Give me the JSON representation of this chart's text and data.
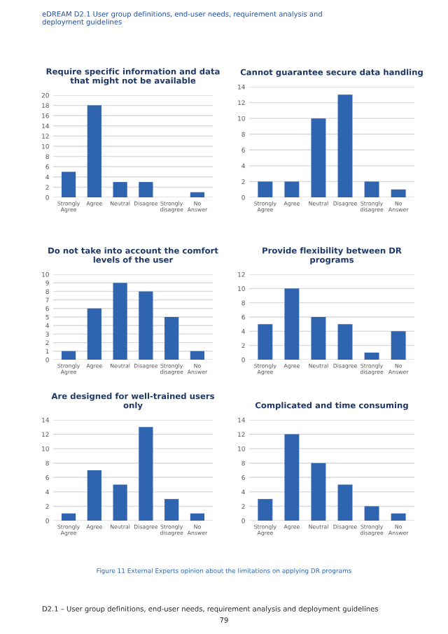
{
  "chart_data": [
    {
      "type": "bar",
      "title": "Require specific information and data\nthat might not be available",
      "categories": [
        "Strongly\nAgree",
        "Agree",
        "Neutral",
        "Disagree",
        "Strongly\ndisagree",
        "No\nAnswer"
      ],
      "values": [
        5,
        18,
        3,
        3,
        0,
        1
      ],
      "color": "#2e64b0",
      "ylim": [
        0,
        20
      ],
      "yticks": [
        0,
        2,
        4,
        6,
        8,
        10,
        12,
        14,
        16,
        18,
        20
      ],
      "grid": "y"
    },
    {
      "type": "bar",
      "title": "Cannot guarantee secure data handling",
      "categories": [
        "Strongly\nAgree",
        "Agree",
        "Neutral",
        "Disagree",
        "Strongly\ndisagree",
        "No\nAnswer"
      ],
      "values": [
        2,
        2,
        10,
        13,
        2,
        1
      ],
      "color": "#2e64b0",
      "ylim": [
        0,
        14
      ],
      "yticks": [
        0,
        2,
        4,
        6,
        8,
        10,
        12,
        14
      ],
      "grid": "y"
    },
    {
      "type": "bar",
      "title": "Do not take into account the comfort\nlevels of the user",
      "categories": [
        "Strongly\nAgree",
        "Agree",
        "Neutral",
        "Disagree",
        "Strongly\ndisagree",
        "No\nAnswer"
      ],
      "values": [
        1,
        6,
        9,
        8,
        5,
        1
      ],
      "color": "#2e64b0",
      "ylim": [
        0,
        10
      ],
      "yticks": [
        0,
        1,
        2,
        3,
        4,
        5,
        6,
        7,
        8,
        9,
        10
      ],
      "grid": "y"
    },
    {
      "type": "bar",
      "title": "Provide flexibility between DR\nprograms",
      "categories": [
        "Strongly\nAgree",
        "Agree",
        "Neutral",
        "Disagree",
        "Strongly\ndisagree",
        "No\nAnswer"
      ],
      "values": [
        5,
        10,
        6,
        5,
        1,
        4
      ],
      "color": "#2e64b0",
      "ylim": [
        0,
        12
      ],
      "yticks": [
        0,
        2,
        4,
        6,
        8,
        10,
        12
      ],
      "grid": "y"
    },
    {
      "type": "bar",
      "title": "Are designed for well-trained users\nonly",
      "categories": [
        "Strongly\nAgree",
        "Agree",
        "Neutral",
        "Disagree",
        "Strongly\ndisagree",
        "No\nAnswer"
      ],
      "values": [
        1,
        7,
        5,
        13,
        3,
        1
      ],
      "color": "#2e64b0",
      "ylim": [
        0,
        14
      ],
      "yticks": [
        0,
        2,
        4,
        6,
        8,
        10,
        12,
        14
      ],
      "grid": "y"
    },
    {
      "type": "bar",
      "title": "Complicated and time consuming",
      "categories": [
        "Strongly\nAgree",
        "Agree",
        "Neutral",
        "Disagree",
        "Strongly\ndisagree",
        "No\nAnswer"
      ],
      "values": [
        3,
        12,
        8,
        5,
        2,
        1
      ],
      "color": "#2e64b0",
      "ylim": [
        0,
        14
      ],
      "yticks": [
        0,
        2,
        4,
        6,
        8,
        10,
        12,
        14
      ],
      "grid": "y"
    },
    {
      "type": "other",
      "annotations": [
        "eDREAM D2.1 User group definitions, end-user needs, requirement analysis and\ndeployment guidelines",
        "Figure 11 External Experts opinion about the limitations on applying DR programs",
        "D2.1 – User group definitions, end-user needs, requirement analysis and deployment guidelines",
        "79"
      ]
    }
  ]
}
